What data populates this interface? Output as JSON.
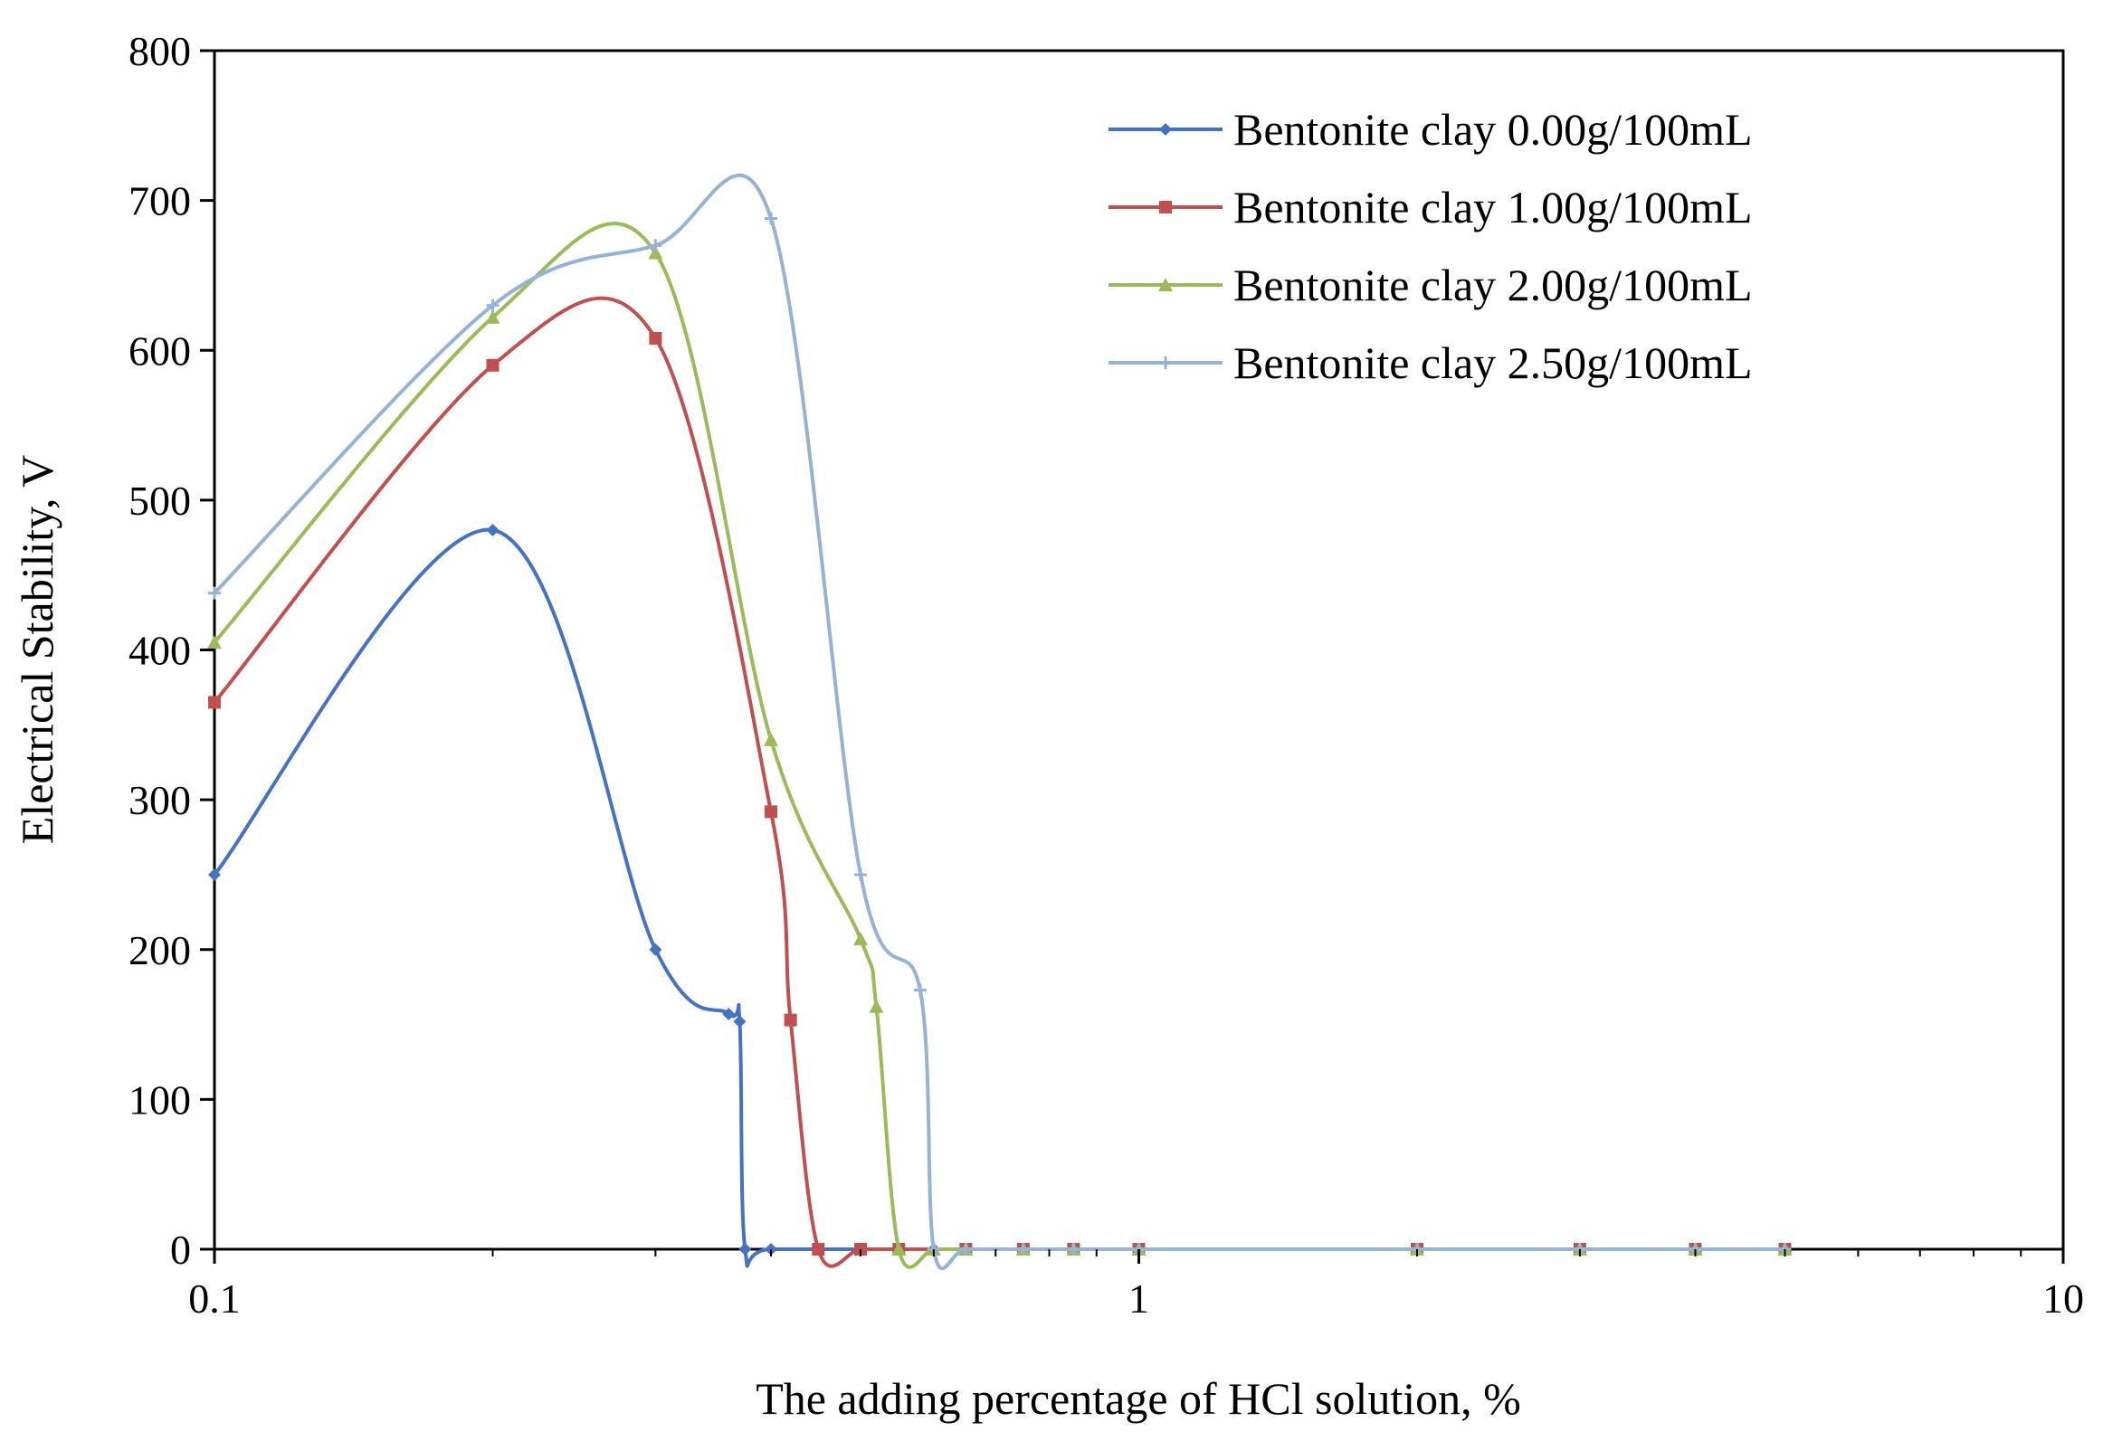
{
  "chart_data": {
    "type": "line",
    "title": "",
    "xlabel": "The adding percentage of HCl solution, %",
    "ylabel": "Electrical Stability, V",
    "xscale": "log",
    "xlim": [
      0.1,
      10
    ],
    "ylim": [
      0,
      800
    ],
    "xticks": [
      0.1,
      1,
      10
    ],
    "xtick_labels": [
      "0.1",
      "1",
      "10"
    ],
    "yticks": [
      0,
      100,
      200,
      300,
      400,
      500,
      600,
      700,
      800
    ],
    "ytick_labels": [
      "0",
      "100",
      "200",
      "300",
      "400",
      "500",
      "600",
      "700",
      "800"
    ],
    "grid": false,
    "legend_position": "top-right",
    "series": [
      {
        "name": "Bentonite clay 0.00g/100mL",
        "color": "#4472C4",
        "marker": "diamond",
        "x": [
          0.1,
          0.2,
          0.3,
          0.36,
          0.37,
          0.375,
          0.4,
          0.6,
          0.65,
          0.75,
          0.85,
          1.0,
          2.0,
          3.0,
          4.0,
          5.0
        ],
        "y": [
          250,
          480,
          200,
          157,
          152,
          0,
          0,
          0,
          0,
          0,
          0,
          0,
          0,
          0,
          0,
          0
        ]
      },
      {
        "name": "Bentonite clay 1.00g/100mL",
        "color": "#C0504D",
        "marker": "square",
        "x": [
          0.1,
          0.2,
          0.3,
          0.4,
          0.42,
          0.45,
          0.5,
          0.55,
          0.65,
          0.75,
          0.85,
          1.0,
          2.0,
          3.0,
          4.0,
          5.0
        ],
        "y": [
          365,
          590,
          608,
          292,
          153,
          0,
          0,
          0,
          0,
          0,
          0,
          0,
          0,
          0,
          0,
          0
        ]
      },
      {
        "name": "Bentonite clay 2.00g/100mL",
        "color": "#9BBB59",
        "marker": "triangle",
        "x": [
          0.1,
          0.2,
          0.3,
          0.4,
          0.5,
          0.52,
          0.55,
          0.6,
          0.65,
          0.75,
          0.85,
          1.0,
          2.0,
          3.0,
          4.0,
          5.0
        ],
        "y": [
          405,
          622,
          665,
          340,
          207,
          162,
          0,
          0,
          0,
          0,
          0,
          0,
          0,
          0,
          0,
          0
        ]
      },
      {
        "name": "Bentonite clay 2.50g/100mL",
        "color": "#95B3D7",
        "marker": "cross",
        "x": [
          0.1,
          0.2,
          0.3,
          0.4,
          0.5,
          0.58,
          0.6,
          0.65,
          0.75,
          0.85,
          1.0,
          2.0,
          3.0,
          4.0,
          5.0
        ],
        "y": [
          438,
          630,
          670,
          688,
          250,
          173,
          0,
          0,
          0,
          0,
          0,
          0,
          0,
          0,
          0
        ]
      }
    ]
  }
}
